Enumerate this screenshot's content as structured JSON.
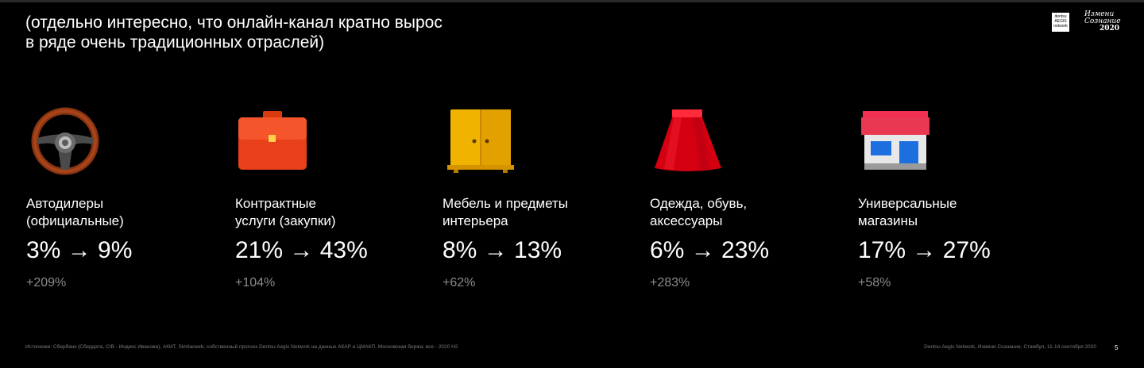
{
  "title": {
    "line1": "(отдельно интересно, что онлайн-канал кратно вырос",
    "line2": "в ряде очень традиционных отраслей)"
  },
  "logos": {
    "dentsu": [
      "dentsu",
      "AEGIS",
      "network"
    ],
    "izmeni": [
      "Измени",
      "Сознание"
    ],
    "izmeni_year": "2020"
  },
  "categories": [
    {
      "icon": "steering-wheel-icon",
      "label_line1": "Автодилеры",
      "label_line2": "(официальные)",
      "change": "3% → 9%",
      "growth": "+209%"
    },
    {
      "icon": "briefcase-icon",
      "label_line1": "Контрактные",
      "label_line2": "услуги (закупки)",
      "change": "21% → 43%",
      "growth": "+104%"
    },
    {
      "icon": "wardrobe-icon",
      "label_line1": "Мебель и предметы",
      "label_line2": "интерьера",
      "change": "8% → 13%",
      "growth": "+62%"
    },
    {
      "icon": "skirt-icon",
      "label_line1": "Одежда, обувь,",
      "label_line2": "аксессуары",
      "change": "6% → 23%",
      "growth": "+283%"
    },
    {
      "icon": "store-icon",
      "label_line1": "Универсальные",
      "label_line2": "магазины",
      "change": "17% → 27%",
      "growth": "+58%"
    }
  ],
  "footer": {
    "sources": "Источники: Сбербанк (Сбердата, CIB - Индекс Иванова), АКИТ, Similarweb, собственный прогноз Dentsu Aegis Network на данных АКАР и ЦМАКП, Московская биржа; все - 2020 H2",
    "event": "Dentsu Aegis Network, Измени Сознание, Стамбул, 11-14 сентября 2020",
    "page": "5"
  },
  "colors": {
    "background": "#000000",
    "text": "#ffffff",
    "muted": "#8a8a8a"
  }
}
